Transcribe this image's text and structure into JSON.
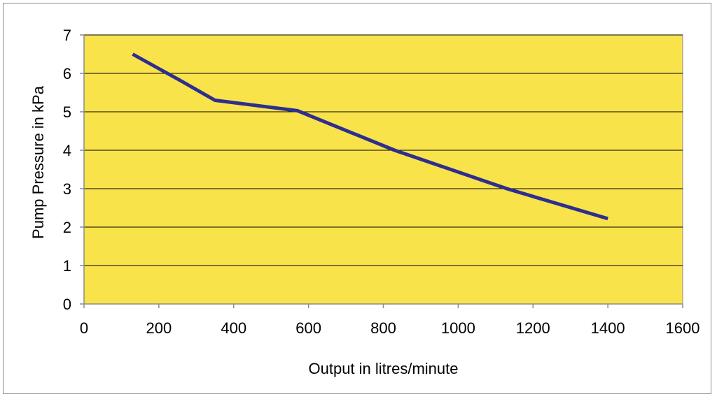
{
  "chart_data": {
    "type": "line",
    "title": "",
    "xlabel": "Output in litres/minute",
    "ylabel": "Pump Pressure in kPa",
    "xlim": [
      0,
      1600
    ],
    "ylim": [
      0,
      7
    ],
    "x_ticks": [
      0,
      200,
      400,
      600,
      800,
      1000,
      1200,
      1400,
      1600
    ],
    "y_ticks": [
      0,
      1,
      2,
      3,
      4,
      5,
      6,
      7
    ],
    "grid": "horizontal",
    "legend": "none",
    "colors": {
      "plot_background": "#f9e34b",
      "line": "#2e2e8f",
      "gridline": "#000000",
      "axis": "#8c8c8c"
    },
    "series": [
      {
        "x": [
          130,
          260,
          350,
          570,
          830,
          1130,
          1400
        ],
        "values": [
          6.5,
          5.8,
          5.3,
          5.03,
          4.0,
          3.0,
          2.22
        ]
      }
    ]
  }
}
